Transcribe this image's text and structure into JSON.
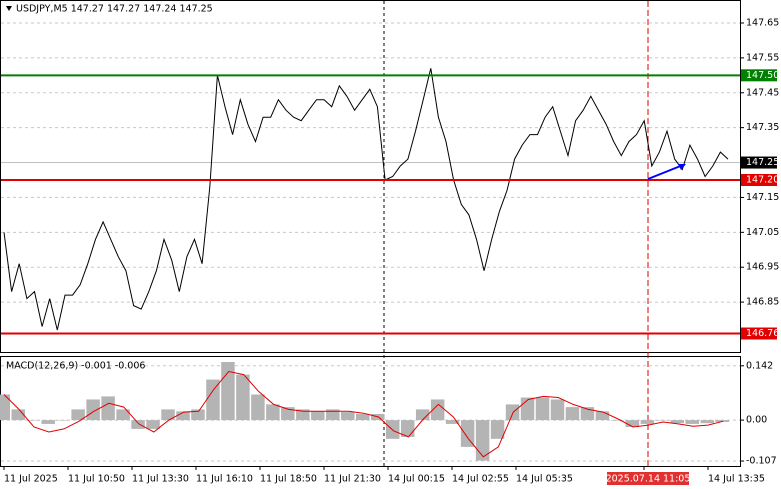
{
  "chart_data": [
    {
      "type": "line",
      "title": "USDJPY,M5 147.27 147.27 147.24 147.25",
      "series": [
        {
          "name": "USDJPY,M5",
          "color": "#000000",
          "values": [
            147.05,
            146.88,
            146.96,
            146.86,
            146.88,
            146.78,
            146.86,
            146.77,
            146.87,
            146.87,
            146.9,
            146.96,
            147.03,
            147.08,
            147.03,
            146.98,
            146.94,
            146.84,
            146.83,
            146.88,
            146.94,
            147.03,
            146.97,
            146.88,
            146.98,
            147.03,
            146.96,
            147.18,
            147.5,
            147.41,
            147.33,
            147.43,
            147.36,
            147.31,
            147.38,
            147.38,
            147.43,
            147.4,
            147.38,
            147.37,
            147.4,
            147.43,
            147.43,
            147.41,
            147.47,
            147.44,
            147.4,
            147.43,
            147.46,
            147.41,
            147.2,
            147.21,
            147.24,
            147.26,
            147.34,
            147.43,
            147.52,
            147.38,
            147.31,
            147.2,
            147.13,
            147.1,
            147.03,
            146.94,
            147.03,
            147.11,
            147.17,
            147.26,
            147.3,
            147.33,
            147.33,
            147.38,
            147.41,
            147.34,
            147.27,
            147.37,
            147.4,
            147.44,
            147.4,
            147.36,
            147.31,
            147.27,
            147.31,
            147.33,
            147.37,
            147.24,
            147.28,
            147.34,
            147.26,
            147.23,
            147.3,
            147.26,
            147.21,
            147.24,
            147.28,
            147.26
          ]
        }
      ],
      "ylim": [
        146.707,
        147.713
      ],
      "yticks": [
        147.65,
        {
          "value": 147.55,
          "label": "147.55"
        },
        {
          "value": 147.45,
          "label": "147.45"
        },
        147.35,
        {
          "value": 147.15,
          "label": "147.15"
        },
        147.05,
        146.95,
        146.85
      ],
      "levels": [
        {
          "value": 147.5,
          "label": "147.50",
          "color": "#008000"
        },
        {
          "value": 147.2,
          "label": "147.20",
          "color": "#e00000"
        },
        {
          "value": 146.76,
          "label": "146.76",
          "color": "#e00000"
        },
        {
          "value": 147.25,
          "label": "147.25",
          "color": "#c0c0c0"
        }
      ],
      "xticks": [
        "11 Jul 2025",
        "11 Jul 10:50",
        "11 Jul 13:30",
        "11 Jul 16:10",
        "11 Jul 18:50",
        "11 Jul 21:30",
        "14 Jul 00:15",
        "14 Jul 02:55",
        "14 Jul 05:35",
        null,
        "2025.07.14 11:05",
        "14 Jul 13:35"
      ],
      "grid": true
    },
    {
      "type": "macd",
      "title": "MACD(12,26,9) -0.001 -0.006",
      "series": [
        {
          "name": "MACD",
          "color": "#b4b4b4",
          "values": [
            0.067,
            0.028,
            0,
            -0.01,
            0,
            0.028,
            0.054,
            0.062,
            0.028,
            -0.023,
            -0.023,
            0.028,
            0.023,
            0.028,
            0.106,
            0.152,
            0.119,
            0.067,
            0.041,
            0.034,
            0.028,
            0.023,
            0.028,
            0.021,
            0.016,
            0.016,
            -0.049,
            -0.044,
            0.028,
            0.054,
            -0.01,
            -0.07,
            -0.106,
            -0.049,
            0.041,
            0.059,
            0.059,
            0.054,
            0.034,
            0.034,
            0.023,
            0,
            -0.018,
            -0.01,
            0,
            -0.008,
            -0.01,
            -0.008,
            -0.005
          ]
        },
        {
          "name": "Signal",
          "color": "#e00000",
          "values": [
            0.067,
            0.028,
            -0.018,
            -0.031,
            -0.023,
            -0.003,
            0.023,
            0.044,
            0.034,
            -0.01,
            -0.031,
            0,
            0.021,
            0.023,
            0.08,
            0.127,
            0.119,
            0.075,
            0.041,
            0.028,
            0.023,
            0.023,
            0.023,
            0.023,
            0.018,
            0.008,
            -0.028,
            -0.044,
            0.003,
            0.041,
            0.008,
            -0.049,
            -0.096,
            -0.07,
            0.021,
            0.054,
            0.062,
            0.059,
            0.041,
            0.028,
            0.021,
            0.003,
            -0.018,
            -0.013,
            -0.005,
            -0.01,
            -0.016,
            -0.013,
            -0.003
          ]
        }
      ],
      "ylim": [
        -0.12,
        0.165
      ],
      "yticks": [
        0.142,
        {
          "value": 0,
          "label": "0.00"
        },
        -0.107
      ]
    }
  ]
}
